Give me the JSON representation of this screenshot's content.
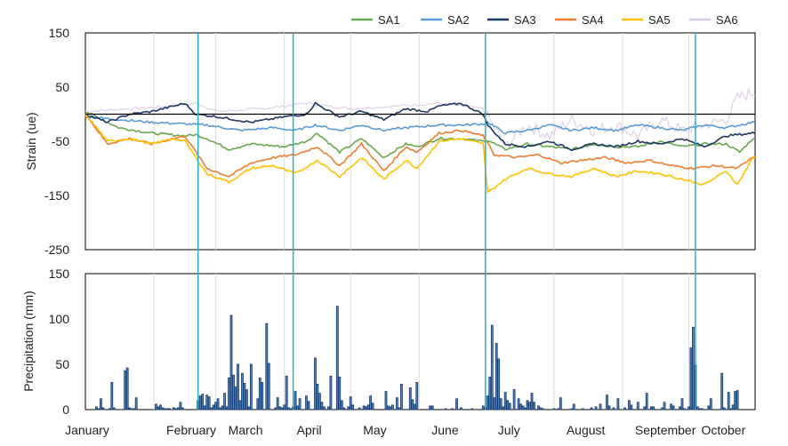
{
  "chart_data": [
    {
      "type": "line",
      "ylabel": "Strain (ue)",
      "ylim": [
        -250,
        150
      ],
      "yticks": [
        150,
        50,
        -50,
        -150,
        -250
      ],
      "x_domain_days": [
        0,
        303
      ],
      "grid": "vertical at month boundaries",
      "legend_position": "top",
      "reference_line": 0,
      "series": [
        {
          "name": "SA1",
          "color": "#6aa84f",
          "x": [
            0,
            15,
            30,
            45,
            50,
            55,
            65,
            75,
            90,
            100,
            105,
            115,
            125,
            135,
            145,
            150,
            160,
            170,
            180,
            182,
            190,
            200,
            210,
            220,
            230,
            240,
            250,
            260,
            270,
            280,
            290,
            296,
            302
          ],
          "values": [
            5,
            -25,
            -35,
            -40,
            -38,
            -45,
            -65,
            -55,
            -60,
            -50,
            -35,
            -70,
            -45,
            -80,
            -55,
            -60,
            -45,
            -45,
            -50,
            -48,
            -65,
            -55,
            -60,
            -65,
            -55,
            -60,
            -60,
            -50,
            -60,
            -55,
            -55,
            -70,
            -45
          ]
        },
        {
          "name": "SA2",
          "color": "#5b9bd5",
          "x": [
            0,
            15,
            30,
            45,
            55,
            70,
            85,
            95,
            104,
            115,
            125,
            135,
            145,
            160,
            170,
            180,
            182,
            190,
            200,
            210,
            220,
            230,
            240,
            250,
            260,
            270,
            280,
            290,
            302
          ],
          "values": [
            -5,
            -10,
            -15,
            -18,
            -20,
            -30,
            -25,
            -30,
            -20,
            -30,
            -20,
            -30,
            -25,
            -20,
            -20,
            -18,
            -15,
            -35,
            -30,
            -20,
            -30,
            -25,
            -30,
            -20,
            -25,
            -30,
            -20,
            -25,
            -15
          ]
        },
        {
          "name": "SA3",
          "color": "#1f3864",
          "x": [
            0,
            10,
            20,
            30,
            40,
            45,
            50,
            60,
            75,
            90,
            100,
            104,
            115,
            125,
            135,
            145,
            155,
            160,
            170,
            180,
            182,
            190,
            200,
            210,
            220,
            230,
            240,
            250,
            260,
            270,
            280,
            290,
            302
          ],
          "values": [
            0,
            -15,
            0,
            5,
            15,
            20,
            0,
            -5,
            -15,
            -5,
            0,
            20,
            -5,
            5,
            -10,
            10,
            5,
            15,
            20,
            0,
            -20,
            -55,
            -60,
            -50,
            -65,
            -55,
            -60,
            -50,
            -55,
            -45,
            -60,
            -40,
            -35
          ]
        },
        {
          "name": "SA4",
          "color": "#ed7d31",
          "x": [
            0,
            10,
            20,
            30,
            40,
            45,
            55,
            65,
            75,
            85,
            95,
            105,
            115,
            125,
            135,
            145,
            150,
            160,
            170,
            180,
            185,
            195,
            205,
            215,
            225,
            235,
            245,
            255,
            265,
            275,
            285,
            295,
            302
          ],
          "values": [
            0,
            -55,
            -45,
            -55,
            -45,
            -40,
            -100,
            -115,
            -90,
            -80,
            -75,
            -60,
            -95,
            -55,
            -105,
            -60,
            -70,
            -35,
            -30,
            -40,
            -75,
            -80,
            -75,
            -90,
            -85,
            -80,
            -90,
            -85,
            -95,
            -100,
            -95,
            -100,
            -80
          ]
        },
        {
          "name": "SA5",
          "color": "#ffc000",
          "x": [
            0,
            10,
            20,
            30,
            40,
            45,
            55,
            65,
            75,
            85,
            95,
            105,
            115,
            125,
            135,
            145,
            150,
            160,
            170,
            180,
            182,
            190,
            200,
            210,
            220,
            230,
            240,
            250,
            260,
            270,
            280,
            290,
            295,
            302
          ],
          "values": [
            0,
            -50,
            -45,
            -55,
            -45,
            -50,
            -110,
            -125,
            -100,
            -95,
            -110,
            -85,
            -115,
            -80,
            -120,
            -85,
            -100,
            -50,
            -45,
            -55,
            -145,
            -120,
            -100,
            -110,
            -115,
            -100,
            -115,
            -105,
            -110,
            -120,
            -130,
            -105,
            -130,
            -80
          ]
        },
        {
          "name": "SA6",
          "color": "#d9c8e6",
          "x": [
            0,
            20,
            40,
            50,
            60,
            80,
            100,
            120,
            140,
            160,
            180,
            190,
            200,
            210,
            220,
            230,
            240,
            250,
            260,
            270,
            280,
            290,
            295,
            302
          ],
          "values": [
            5,
            10,
            15,
            20,
            5,
            10,
            20,
            10,
            15,
            20,
            10,
            -60,
            -20,
            -40,
            -10,
            -30,
            -20,
            -40,
            -10,
            -30,
            -20,
            -10,
            30,
            40
          ]
        }
      ]
    },
    {
      "type": "bar",
      "ylabel": "Precipitation (mm)",
      "ylim": [
        0,
        150
      ],
      "yticks": [
        150,
        100,
        50,
        0
      ],
      "bar_color": "#1f3864",
      "bar_fill": "#4a86c8",
      "days": [
        5,
        6,
        7,
        8,
        11,
        12,
        13,
        18,
        19,
        20,
        21,
        22,
        23,
        32,
        33,
        34,
        35,
        36,
        37,
        38,
        40,
        41,
        42,
        43,
        44,
        51,
        52,
        53,
        54,
        55,
        56,
        57,
        58,
        59,
        60,
        61,
        62,
        63,
        64,
        65,
        66,
        67,
        68,
        69,
        70,
        71,
        72,
        73,
        74,
        75,
        78,
        79,
        80,
        82,
        83,
        86,
        87,
        88,
        89,
        90,
        91,
        92,
        93,
        94,
        95,
        96,
        97,
        100,
        101,
        104,
        105,
        106,
        107,
        108,
        110,
        111,
        114,
        115,
        116,
        117,
        119,
        120,
        121,
        124,
        126,
        127,
        128,
        129,
        130,
        136,
        137,
        138,
        139,
        141,
        142,
        143,
        147,
        148,
        149,
        150,
        156,
        157,
        163,
        166,
        168,
        170,
        175,
        180,
        181,
        182,
        183,
        184,
        185,
        186,
        187,
        188,
        189,
        190,
        191,
        192,
        194,
        196,
        197,
        198,
        199,
        200,
        201,
        202,
        203,
        205,
        206,
        207,
        212,
        214,
        215,
        220,
        221,
        225,
        229,
        231,
        233,
        236,
        237,
        239,
        241,
        244,
        246,
        247,
        250,
        253,
        254,
        256,
        257,
        261,
        262,
        265,
        266,
        269,
        270,
        271,
        273,
        274,
        275,
        276,
        277,
        278,
        279,
        282,
        283,
        288,
        289,
        291,
        292,
        293,
        294,
        295
      ],
      "values": [
        3,
        1,
        12,
        2,
        1,
        30,
        2,
        43,
        46,
        2,
        1,
        1,
        13,
        6,
        3,
        5,
        2,
        1,
        1,
        1,
        2,
        1,
        2,
        8,
        2,
        10,
        15,
        17,
        4,
        16,
        14,
        2,
        5,
        8,
        12,
        2,
        4,
        18,
        3,
        35,
        104,
        38,
        25,
        50,
        10,
        40,
        29,
        22,
        3,
        50,
        12,
        35,
        30,
        95,
        51,
        2,
        13,
        3,
        2,
        5,
        37,
        2,
        1,
        3,
        20,
        4,
        12,
        15,
        9,
        57,
        28,
        18,
        8,
        3,
        3,
        37,
        114,
        36,
        10,
        2,
        3,
        14,
        5,
        2,
        4,
        3,
        5,
        15,
        7,
        20,
        4,
        3,
        5,
        13,
        2,
        28,
        24,
        11,
        6,
        30,
        4,
        4,
        1,
        1,
        12,
        2,
        1,
        4,
        2,
        15,
        36,
        93,
        13,
        73,
        56,
        12,
        3,
        19,
        10,
        7,
        22,
        12,
        6,
        4,
        2,
        10,
        8,
        18,
        8,
        4,
        2,
        1,
        1,
        1,
        13,
        1,
        6,
        1,
        2,
        3,
        6,
        16,
        4,
        2,
        12,
        2,
        10,
        5,
        8,
        3,
        18,
        3,
        3,
        2,
        8,
        6,
        4,
        3,
        12,
        1,
        3,
        68,
        91,
        49,
        3,
        1,
        1,
        4,
        12,
        40,
        2,
        19,
        1,
        5,
        20,
        21
      ]
    }
  ],
  "x_axis": {
    "labels": [
      "January",
      "February",
      "March",
      "April",
      "May",
      "June",
      "July",
      "August",
      "September",
      "October"
    ],
    "label_days": [
      0,
      31,
      59,
      90,
      120,
      151,
      181,
      212,
      243,
      273
    ]
  },
  "event_lines_days": [
    51,
    94,
    181,
    276
  ],
  "colors": {
    "event_line": "#2ab0cc",
    "grid": "#d9d9d9",
    "axis": "#000000"
  }
}
